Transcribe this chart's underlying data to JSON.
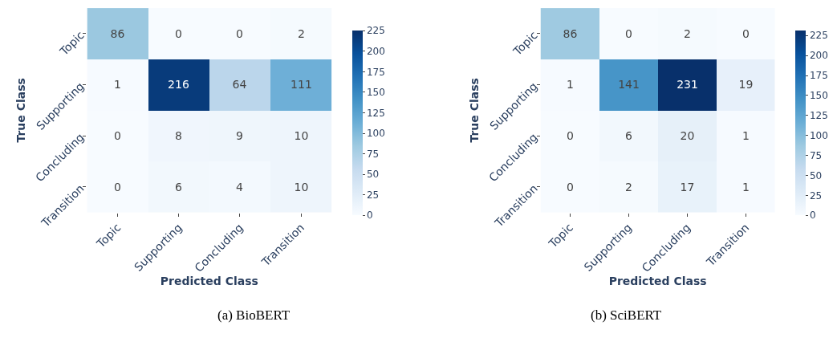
{
  "chart_data": [
    {
      "type": "heatmap",
      "title": "(a) BioBERT",
      "xlabel": "Predicted Class",
      "ylabel": "True Class",
      "categories": [
        "Topic",
        "Supporting",
        "Concluding",
        "Transition"
      ],
      "y_categories": [
        "Topic",
        "Supporting",
        "Concluding",
        "Transition"
      ],
      "cells": [
        [
          86,
          0,
          0,
          2
        ],
        [
          1,
          216,
          64,
          111
        ],
        [
          0,
          8,
          9,
          10
        ],
        [
          0,
          6,
          4,
          10
        ]
      ],
      "clim": [
        0,
        225
      ],
      "cticks": [
        0,
        25,
        50,
        75,
        100,
        125,
        150,
        175,
        200,
        225
      ],
      "data_labels": true
    },
    {
      "type": "heatmap",
      "title": "(b) SciBERT",
      "xlabel": "Predicted Class",
      "ylabel": "True Class",
      "categories": [
        "Topic",
        "Supporting",
        "Concluding",
        "Transition"
      ],
      "y_categories": [
        "Topic",
        "Supporting",
        "Concluding",
        "Transition"
      ],
      "cells": [
        [
          86,
          0,
          2,
          0
        ],
        [
          1,
          141,
          231,
          19
        ],
        [
          0,
          6,
          20,
          1
        ],
        [
          0,
          2,
          17,
          1
        ]
      ],
      "clim": [
        0,
        231
      ],
      "cticks": [
        0,
        25,
        50,
        75,
        100,
        125,
        150,
        175,
        200,
        225
      ],
      "data_labels": true
    }
  ]
}
